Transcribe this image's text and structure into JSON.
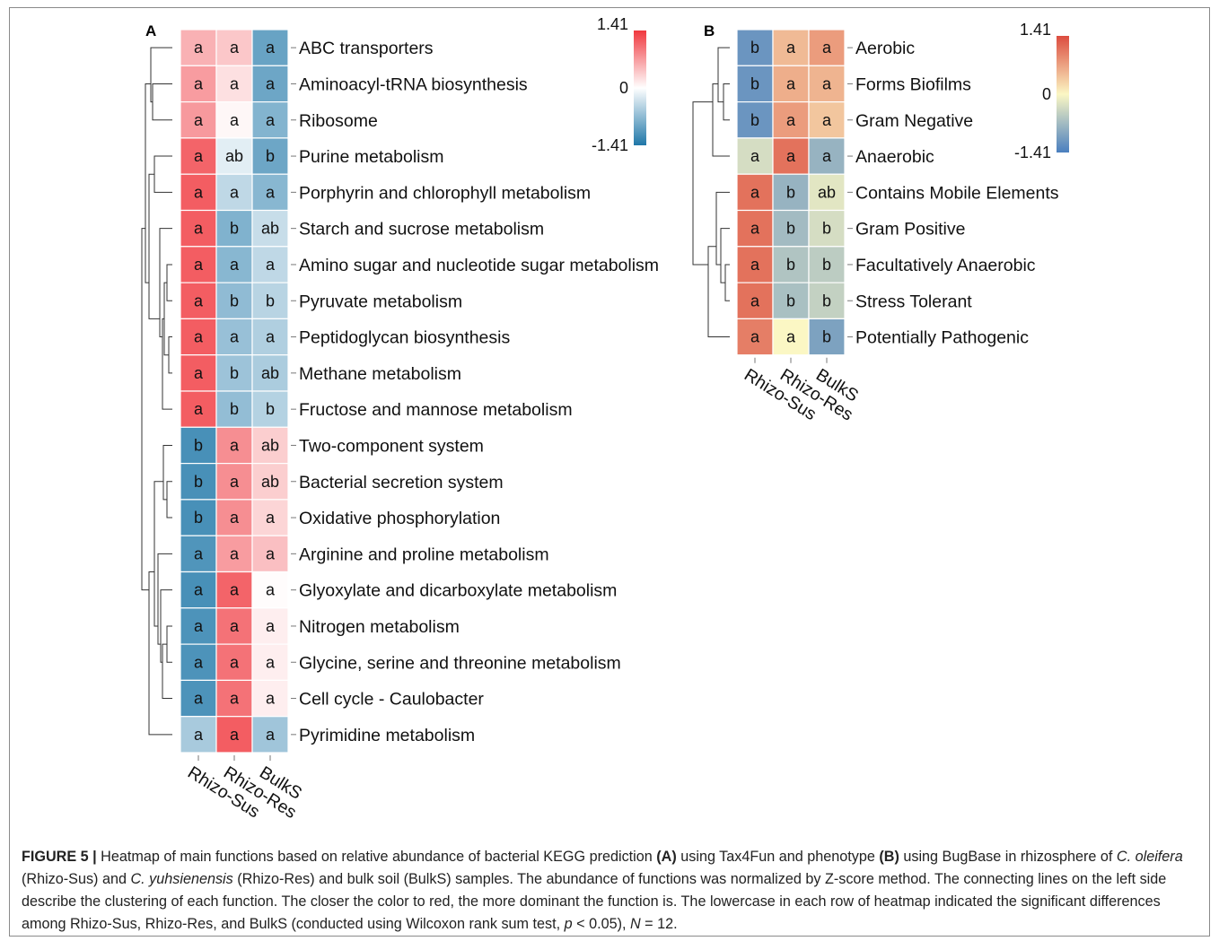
{
  "figure": {
    "caption_label": "FIGURE 5 |",
    "caption_parts": [
      {
        "t": " Heatmap of main functions based on relative abundance of bacterial KEGG prediction ",
        "s": "n"
      },
      {
        "t": "(A)",
        "s": "b"
      },
      {
        "t": " using Tax4Fun and phenotype ",
        "s": "n"
      },
      {
        "t": "(B)",
        "s": "b"
      },
      {
        "t": " using BugBase in rhizosphere of ",
        "s": "n"
      },
      {
        "t": "C. oleifera",
        "s": "i"
      },
      {
        "t": " (Rhizo-Sus) and ",
        "s": "n"
      },
      {
        "t": "C. yuhsienensis",
        "s": "i"
      },
      {
        "t": " (Rhizo-Res) and bulk soil (BulkS) samples. The abundance of functions was normalized by Z-score method. The connecting lines on the left side describe the clustering of each function. The closer the color to red, the more dominant the function is. The lowercase in each row of heatmap indicated the significant differences among Rhizo-Sus, Rhizo-Res, and BulkS (conducted using Wilcoxon rank sum test, ",
        "s": "n"
      },
      {
        "t": "p",
        "s": "i"
      },
      {
        "t": " < 0.05), ",
        "s": "n"
      },
      {
        "t": "N",
        "s": "i"
      },
      {
        "t": " = 12.",
        "s": "n"
      }
    ]
  },
  "chart_data": [
    {
      "type": "heatmap",
      "panel": "A",
      "palette": {
        "low": "#1f77a8",
        "mid": "#ffffff",
        "high": "#f0383f"
      },
      "scale": {
        "max_label": "1.41",
        "mid_label": "0",
        "min_label": "-1.41",
        "range": [
          -1.41,
          1.41
        ]
      },
      "columns": [
        "Rhizo-Sus",
        "Rhizo-Res",
        "BulkS"
      ],
      "rows": [
        {
          "name": "ABC transporters",
          "z": [
            0.55,
            0.4,
            -0.95
          ],
          "letters": [
            "a",
            "a",
            "a"
          ]
        },
        {
          "name": "Aminoacyl-tRNA biosynthesis",
          "z": [
            0.7,
            0.22,
            -0.92
          ],
          "letters": [
            "a",
            "a",
            "a"
          ]
        },
        {
          "name": "Ribosome",
          "z": [
            0.72,
            0.06,
            -0.78
          ],
          "letters": [
            "a",
            "a",
            "a"
          ]
        },
        {
          "name": "Purine metabolism",
          "z": [
            1.1,
            -0.18,
            -0.92
          ],
          "letters": [
            "a",
            "ab",
            "b"
          ]
        },
        {
          "name": "Porphyrin and chlorophyll metabolism",
          "z": [
            1.15,
            -0.4,
            -0.75
          ],
          "letters": [
            "a",
            "a",
            "a"
          ]
        },
        {
          "name": "Starch and sucrose metabolism",
          "z": [
            1.15,
            -0.8,
            -0.35
          ],
          "letters": [
            "a",
            "b",
            "ab"
          ]
        },
        {
          "name": "Amino sugar and nucleotide sugar metabolism",
          "z": [
            1.15,
            -0.75,
            -0.4
          ],
          "letters": [
            "a",
            "a",
            "a"
          ]
        },
        {
          "name": "Pyruvate metabolism",
          "z": [
            1.15,
            -0.7,
            -0.45
          ],
          "letters": [
            "a",
            "b",
            "b"
          ]
        },
        {
          "name": "Peptidoglycan biosynthesis",
          "z": [
            1.15,
            -0.65,
            -0.5
          ],
          "letters": [
            "a",
            "a",
            "a"
          ]
        },
        {
          "name": "Methane metabolism",
          "z": [
            1.15,
            -0.62,
            -0.53
          ],
          "letters": [
            "a",
            "b",
            "ab"
          ]
        },
        {
          "name": "Fructose and mannose metabolism",
          "z": [
            1.15,
            -0.68,
            -0.47
          ],
          "letters": [
            "a",
            "b",
            "b"
          ]
        },
        {
          "name": "Two-component system",
          "z": [
            -1.15,
            0.8,
            0.35
          ],
          "letters": [
            "b",
            "a",
            "ab"
          ]
        },
        {
          "name": "Bacterial secretion system",
          "z": [
            -1.15,
            0.8,
            0.35
          ],
          "letters": [
            "b",
            "a",
            "ab"
          ]
        },
        {
          "name": "Oxidative phosphorylation",
          "z": [
            -1.15,
            0.8,
            0.3
          ],
          "letters": [
            "b",
            "a",
            "a"
          ]
        },
        {
          "name": "Arginine and proline metabolism",
          "z": [
            -1.1,
            0.7,
            0.45
          ],
          "letters": [
            "a",
            "a",
            "a"
          ]
        },
        {
          "name": "Glyoxylate and dicarboxylate metabolism",
          "z": [
            -1.15,
            1.1,
            0.02
          ],
          "letters": [
            "a",
            "a",
            "a"
          ]
        },
        {
          "name": "Nitrogen metabolism",
          "z": [
            -1.12,
            1.0,
            0.12
          ],
          "letters": [
            "a",
            "a",
            "a"
          ]
        },
        {
          "name": "Glycine, serine and threonine metabolism",
          "z": [
            -1.12,
            1.0,
            0.12
          ],
          "letters": [
            "a",
            "a",
            "a"
          ]
        },
        {
          "name": "Cell cycle - Caulobacter",
          "z": [
            -1.12,
            1.0,
            0.12
          ],
          "letters": [
            "a",
            "a",
            "a"
          ]
        },
        {
          "name": "Pyrimidine metabolism",
          "z": [
            -0.55,
            1.15,
            -0.6
          ],
          "letters": [
            "a",
            "a",
            "a"
          ]
        }
      ]
    },
    {
      "type": "heatmap",
      "panel": "B",
      "palette": {
        "low": "#4a7fbf",
        "mid": "#fbf7c4",
        "high": "#dc4c3f"
      },
      "scale": {
        "max_label": "1.41",
        "mid_label": "0",
        "min_label": "-1.41",
        "range": [
          -1.41,
          1.41
        ]
      },
      "columns": [
        "Rhizo-Sus",
        "Rhizo-Res",
        "BulkS"
      ],
      "rows": [
        {
          "name": "Aerobic",
          "z": [
            -1.15,
            0.5,
            0.75
          ],
          "letters": [
            "b",
            "a",
            "a"
          ]
        },
        {
          "name": "Forms Biofilms",
          "z": [
            -1.15,
            0.6,
            0.55
          ],
          "letters": [
            "b",
            "a",
            "a"
          ]
        },
        {
          "name": "Gram Negative",
          "z": [
            -1.15,
            0.75,
            0.4
          ],
          "letters": [
            "b",
            "a",
            "a"
          ]
        },
        {
          "name": "Anaerobic",
          "z": [
            -0.3,
            1.1,
            -0.8
          ],
          "letters": [
            "a",
            "a",
            "a"
          ]
        },
        {
          "name": "Contains Mobile Elements",
          "z": [
            1.1,
            -0.8,
            -0.2
          ],
          "letters": [
            "a",
            "b",
            "ab"
          ]
        },
        {
          "name": "Gram Positive",
          "z": [
            1.1,
            -0.7,
            -0.3
          ],
          "letters": [
            "a",
            "b",
            "b"
          ]
        },
        {
          "name": "Facultatively Anaerobic",
          "z": [
            1.1,
            -0.6,
            -0.5
          ],
          "letters": [
            "a",
            "b",
            "b"
          ]
        },
        {
          "name": "Stress Tolerant",
          "z": [
            1.1,
            -0.65,
            -0.45
          ],
          "letters": [
            "a",
            "b",
            "b"
          ]
        },
        {
          "name": "Potentially Pathogenic",
          "z": [
            1.0,
            0.0,
            -1.0
          ],
          "letters": [
            "a",
            "a",
            "b"
          ]
        }
      ]
    }
  ]
}
